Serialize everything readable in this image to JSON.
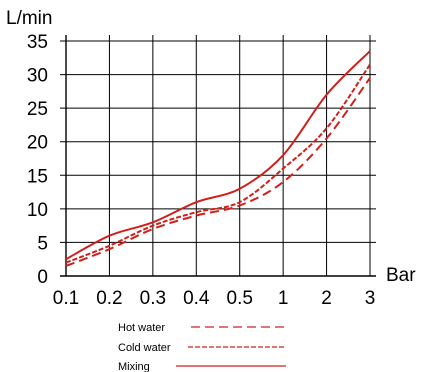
{
  "chart_data": {
    "type": "line",
    "title": "",
    "xlabel": "Bar",
    "ylabel": "L/min",
    "grid": true,
    "legend_position": "bottom",
    "x_categories": [
      "0.1",
      "0.2",
      "0.3",
      "0.4",
      "0.5",
      "1",
      "2",
      "3"
    ],
    "y_ticks": [
      "0",
      "5",
      "10",
      "15",
      "20",
      "25",
      "30",
      "35"
    ],
    "ylim": [
      0,
      35
    ],
    "line_color": "#d0201c",
    "series": [
      {
        "name": "Hot water",
        "style": "dashed",
        "x": [
          "0.1",
          "0.2",
          "0.3",
          "0.4",
          "0.5",
          "1",
          "2",
          "3"
        ],
        "values": [
          1.5,
          4.0,
          7.0,
          9.0,
          10.5,
          14.0,
          20.5,
          29.5
        ]
      },
      {
        "name": "Cold water",
        "style": "dash-dense",
        "x": [
          "0.1",
          "0.2",
          "0.3",
          "0.4",
          "0.5",
          "1",
          "2",
          "3"
        ],
        "values": [
          2.0,
          4.5,
          7.5,
          9.5,
          11.0,
          16.0,
          22.0,
          31.5
        ]
      },
      {
        "name": "Mixing",
        "style": "solid",
        "x": [
          "0.1",
          "0.2",
          "0.3",
          "0.4",
          "0.5",
          "1",
          "2",
          "3"
        ],
        "values": [
          2.5,
          6.0,
          8.0,
          11.0,
          13.0,
          18.0,
          27.0,
          33.5
        ]
      }
    ]
  }
}
